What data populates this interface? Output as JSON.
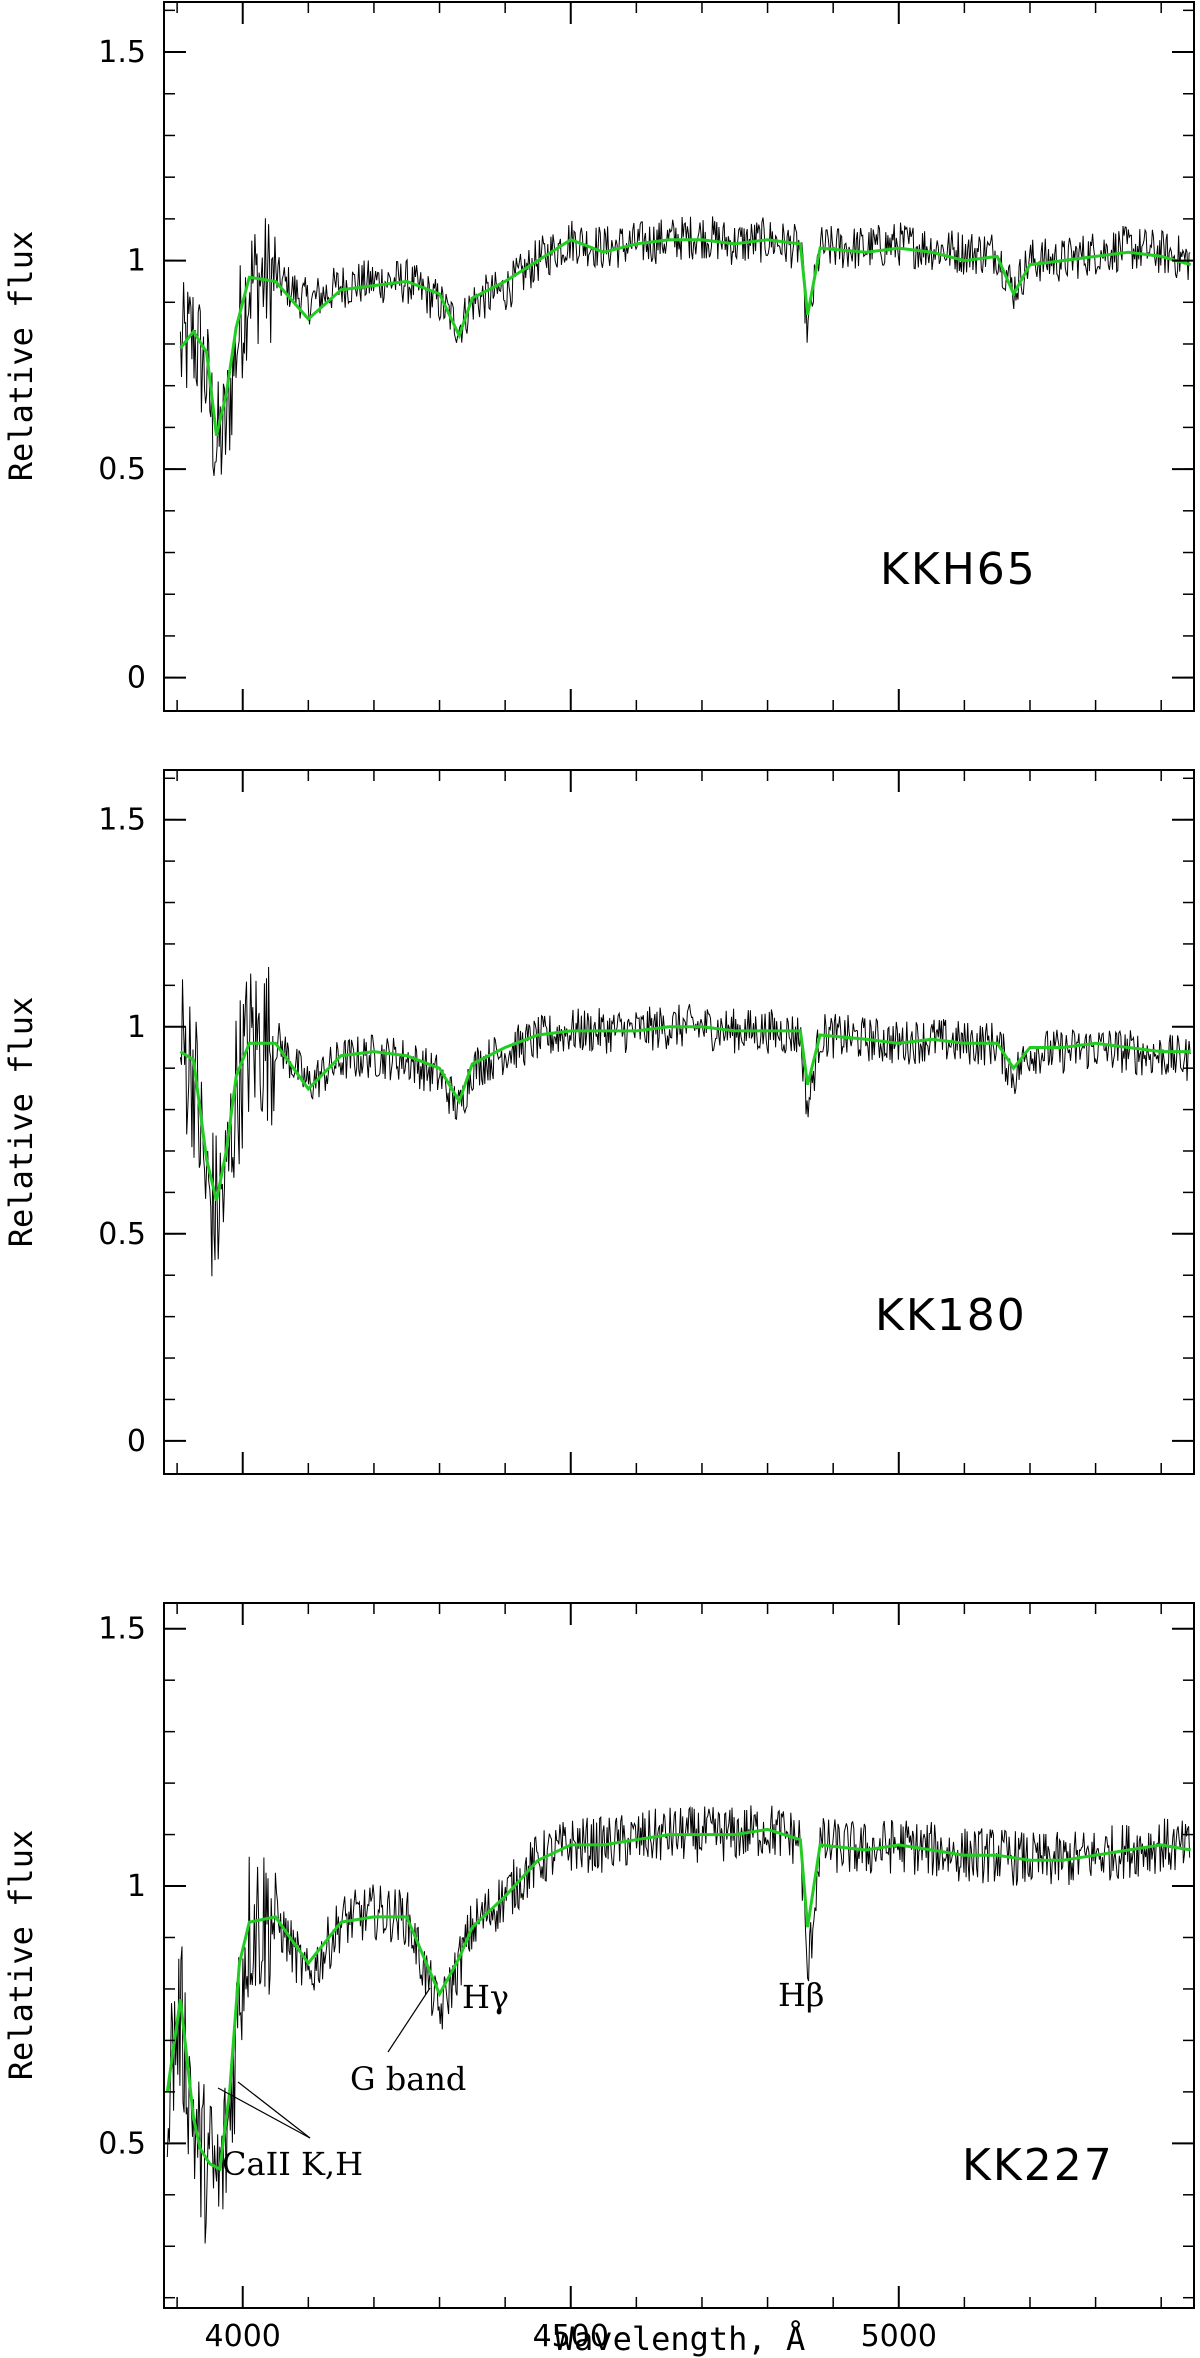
{
  "chart_data": [
    {
      "type": "line",
      "panel": "KKH65",
      "title": "",
      "ylabel": "Relative flux",
      "xlabel": "",
      "xlim": [
        3880,
        5450
      ],
      "ylim": [
        -0.08,
        1.62
      ],
      "yticks": [
        0,
        0.5,
        1,
        1.5
      ],
      "ytick_labels": [
        "0",
        "0.5",
        "1",
        "1.5"
      ],
      "xtick_labels": [],
      "label_text": "KKH65",
      "series": [
        {
          "role": "observed",
          "color": "#000000",
          "x": [
            3905,
            3925,
            3945,
            3960,
            3975,
            3990,
            4010,
            4050,
            4100,
            4150,
            4200,
            4250,
            4300,
            4330,
            4350,
            4400,
            4450,
            4500,
            4550,
            4600,
            4650,
            4700,
            4750,
            4800,
            4850,
            4861,
            4880,
            4950,
            5000,
            5050,
            5100,
            5150,
            5175,
            5200,
            5250,
            5300,
            5350,
            5400,
            5445
          ],
          "y": [
            0.78,
            0.82,
            0.72,
            0.55,
            0.6,
            0.8,
            0.95,
            0.96,
            0.9,
            0.94,
            0.95,
            0.95,
            0.9,
            0.84,
            0.9,
            0.93,
            1.0,
            1.05,
            1.03,
            1.04,
            1.05,
            1.06,
            1.04,
            1.05,
            1.03,
            0.83,
            1.03,
            1.03,
            1.04,
            1.03,
            1.02,
            1.02,
            0.93,
            1.0,
            1.0,
            1.02,
            1.03,
            1.02,
            1.0
          ]
        },
        {
          "role": "model",
          "color": "#22cc22",
          "x": [
            3905,
            3925,
            3945,
            3960,
            3975,
            3990,
            4010,
            4050,
            4100,
            4150,
            4200,
            4250,
            4300,
            4330,
            4350,
            4400,
            4450,
            4500,
            4550,
            4600,
            4650,
            4700,
            4750,
            4800,
            4850,
            4861,
            4880,
            4950,
            5000,
            5050,
            5100,
            5150,
            5175,
            5200,
            5250,
            5300,
            5350,
            5400,
            5445
          ],
          "y": [
            0.79,
            0.83,
            0.78,
            0.58,
            0.68,
            0.84,
            0.96,
            0.95,
            0.86,
            0.93,
            0.94,
            0.95,
            0.92,
            0.82,
            0.91,
            0.95,
            1.0,
            1.05,
            1.02,
            1.04,
            1.05,
            1.05,
            1.04,
            1.05,
            1.04,
            0.87,
            1.03,
            1.02,
            1.03,
            1.02,
            1.0,
            1.01,
            0.92,
            0.99,
            1.0,
            1.01,
            1.02,
            1.01,
            0.99
          ]
        }
      ]
    },
    {
      "type": "line",
      "panel": "KK180",
      "title": "",
      "ylabel": "Relative flux",
      "xlabel": "",
      "xlim": [
        3880,
        5450
      ],
      "ylim": [
        -0.08,
        1.62
      ],
      "yticks": [
        0,
        0.5,
        1,
        1.5
      ],
      "ytick_labels": [
        "0",
        "0.5",
        "1",
        "1.5"
      ],
      "xtick_labels": [],
      "label_text": "KK180",
      "series": [
        {
          "role": "observed",
          "color": "#000000",
          "x": [
            3905,
            3925,
            3945,
            3960,
            3975,
            3990,
            4010,
            4050,
            4100,
            4150,
            4200,
            4250,
            4300,
            4330,
            4350,
            4400,
            4450,
            4500,
            4550,
            4600,
            4650,
            4700,
            4750,
            4800,
            4850,
            4861,
            4880,
            4950,
            5000,
            5050,
            5100,
            5150,
            5175,
            5200,
            5250,
            5300,
            5350,
            5400,
            5445
          ],
          "y": [
            0.95,
            0.9,
            0.6,
            0.55,
            0.62,
            0.85,
            0.96,
            0.97,
            0.86,
            0.92,
            0.93,
            0.92,
            0.88,
            0.8,
            0.9,
            0.94,
            0.97,
            0.99,
            0.99,
            0.99,
            1.0,
            1.0,
            0.99,
            0.99,
            0.98,
            0.8,
            0.98,
            0.97,
            0.96,
            0.97,
            0.96,
            0.96,
            0.88,
            0.94,
            0.94,
            0.95,
            0.94,
            0.93,
            0.92
          ]
        },
        {
          "role": "model",
          "color": "#22cc22",
          "x": [
            3905,
            3925,
            3945,
            3960,
            3975,
            3990,
            4010,
            4050,
            4100,
            4150,
            4200,
            4250,
            4300,
            4330,
            4350,
            4400,
            4450,
            4500,
            4550,
            4600,
            4650,
            4700,
            4750,
            4800,
            4850,
            4861,
            4880,
            4950,
            5000,
            5050,
            5100,
            5150,
            5175,
            5200,
            5250,
            5300,
            5350,
            5400,
            5445
          ],
          "y": [
            0.94,
            0.92,
            0.68,
            0.58,
            0.7,
            0.88,
            0.96,
            0.96,
            0.85,
            0.93,
            0.94,
            0.93,
            0.9,
            0.82,
            0.91,
            0.95,
            0.98,
            0.99,
            0.99,
            0.99,
            1.0,
            1.0,
            0.99,
            0.99,
            0.99,
            0.86,
            0.98,
            0.97,
            0.96,
            0.97,
            0.96,
            0.96,
            0.9,
            0.95,
            0.95,
            0.96,
            0.95,
            0.94,
            0.94
          ]
        }
      ]
    },
    {
      "type": "line",
      "panel": "KK227",
      "title": "",
      "ylabel": "Relative flux",
      "xlabel": "Wavelength, Å",
      "xlim": [
        3880,
        5450
      ],
      "ylim": [
        0.18,
        1.55
      ],
      "yticks": [
        0.5,
        1,
        1.5
      ],
      "ytick_labels": [
        "0.5",
        "1",
        "1.5"
      ],
      "xticks": [
        4000,
        4500,
        5000
      ],
      "xtick_labels": [
        "4000",
        "4500",
        "5000"
      ],
      "label_text": "KK227",
      "annotations": [
        "CaII  K,H",
        "G  band",
        "Hγ",
        "Hβ"
      ],
      "series": [
        {
          "role": "observed",
          "color": "#000000",
          "x": [
            3885,
            3905,
            3925,
            3935,
            3950,
            3965,
            3980,
            3995,
            4010,
            4050,
            4100,
            4150,
            4200,
            4250,
            4300,
            4330,
            4350,
            4400,
            4450,
            4500,
            4550,
            4600,
            4650,
            4700,
            4750,
            4800,
            4850,
            4861,
            4880,
            4950,
            5000,
            5050,
            5100,
            5150,
            5200,
            5250,
            5300,
            5350,
            5400,
            5445
          ],
          "y": [
            0.62,
            0.75,
            0.55,
            0.48,
            0.45,
            0.42,
            0.55,
            0.8,
            0.93,
            0.94,
            0.82,
            0.93,
            0.95,
            0.94,
            0.75,
            0.85,
            0.92,
            0.98,
            1.05,
            1.08,
            1.08,
            1.09,
            1.1,
            1.1,
            1.1,
            1.11,
            1.09,
            0.82,
            1.08,
            1.07,
            1.08,
            1.07,
            1.06,
            1.06,
            1.05,
            1.05,
            1.06,
            1.07,
            1.08,
            1.07
          ]
        },
        {
          "role": "model",
          "color": "#22cc22",
          "x": [
            3885,
            3905,
            3925,
            3935,
            3950,
            3965,
            3980,
            3995,
            4010,
            4050,
            4100,
            4150,
            4200,
            4250,
            4300,
            4330,
            4350,
            4400,
            4450,
            4500,
            4550,
            4600,
            4650,
            4700,
            4750,
            4800,
            4850,
            4861,
            4880,
            4950,
            5000,
            5050,
            5100,
            5150,
            5200,
            5250,
            5300,
            5350,
            5400,
            5445
          ],
          "y": [
            0.6,
            0.78,
            0.55,
            0.49,
            0.46,
            0.45,
            0.6,
            0.85,
            0.93,
            0.94,
            0.85,
            0.93,
            0.94,
            0.94,
            0.79,
            0.86,
            0.92,
            0.98,
            1.05,
            1.08,
            1.08,
            1.09,
            1.1,
            1.1,
            1.1,
            1.11,
            1.09,
            0.92,
            1.08,
            1.07,
            1.08,
            1.07,
            1.06,
            1.06,
            1.05,
            1.05,
            1.06,
            1.07,
            1.08,
            1.07
          ]
        }
      ]
    }
  ]
}
